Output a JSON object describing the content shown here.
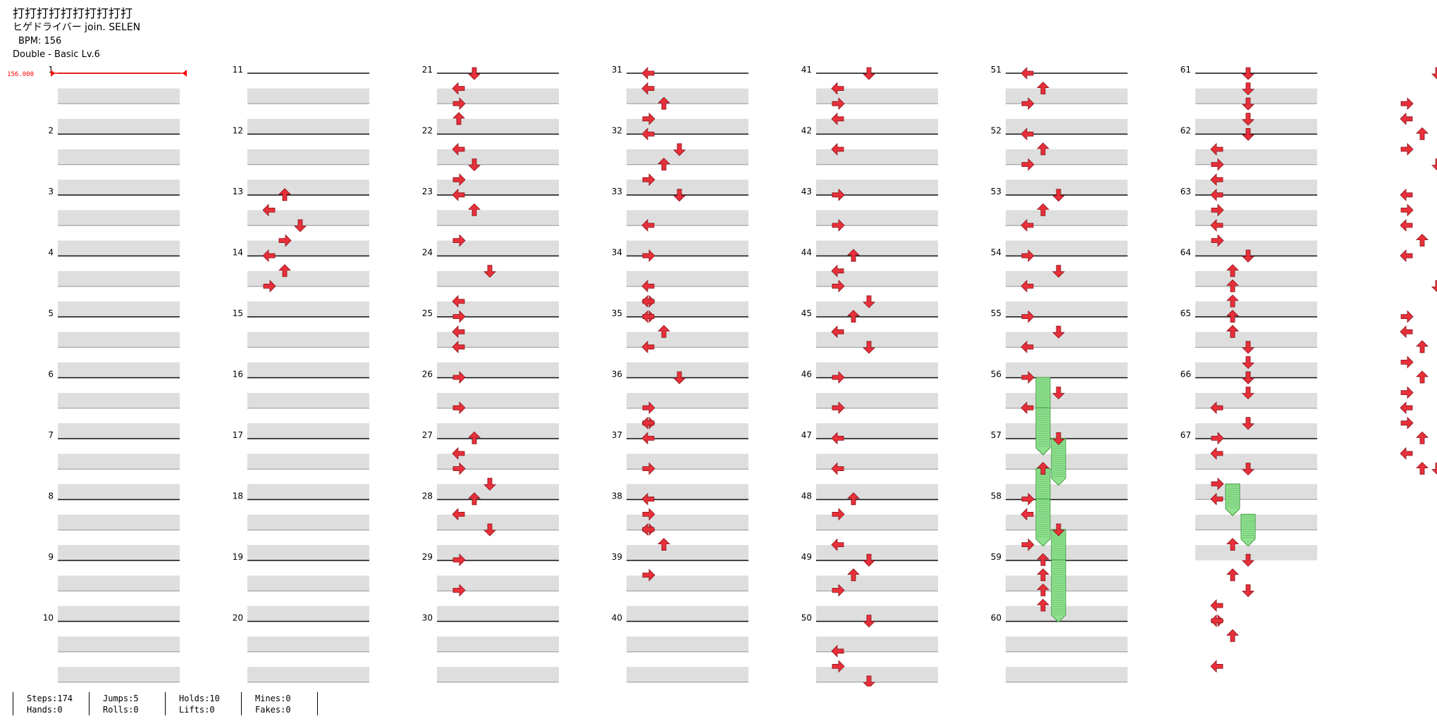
{
  "header": {
    "title": "打打打打打打打打打打",
    "artist": "ヒゲドライバー join. SELEN",
    "bpm": "BPM: 156",
    "difficulty": "Double - Basic Lv.6"
  },
  "bpm_marker": "156.000",
  "measure_numbers": [
    "1",
    "2",
    "3",
    "4",
    "5",
    "6",
    "7",
    "8",
    "9",
    "10",
    "11",
    "12",
    "13",
    "14",
    "15",
    "16",
    "17",
    "18",
    "19",
    "20",
    "21",
    "22",
    "23",
    "24",
    "25",
    "26",
    "27",
    "28",
    "29",
    "30",
    "31",
    "32",
    "33",
    "34",
    "35",
    "36",
    "37",
    "38",
    "39",
    "40",
    "41",
    "42",
    "43",
    "44",
    "45",
    "46",
    "47",
    "48",
    "49",
    "50",
    "51",
    "52",
    "53",
    "54",
    "55",
    "56",
    "57",
    "58",
    "59",
    "60",
    "61",
    "62",
    "63",
    "64",
    "65",
    "66",
    "67"
  ],
  "colors": {
    "arrow": "#e8303a",
    "hold": "#8fe08f",
    "hold_border": "#3c9a3c",
    "lane_bg": "#dedede",
    "bpm": "#ff0000"
  },
  "notes": [
    [
      1,
      8,
      0,
      "u"
    ],
    [
      1,
      9,
      -1,
      "l"
    ],
    [
      1,
      10,
      1,
      "d"
    ],
    [
      1,
      11,
      0,
      "r"
    ],
    [
      1,
      12,
      -1,
      "l"
    ],
    [
      1,
      13,
      0,
      "u"
    ],
    [
      1,
      14,
      -1,
      "r"
    ],
    [
      2,
      0,
      0,
      "d"
    ],
    [
      2,
      1,
      -1,
      "l"
    ],
    [
      2,
      2,
      -1,
      "r"
    ],
    [
      2,
      3,
      -1,
      "u"
    ],
    [
      2,
      5,
      -1,
      "l"
    ],
    [
      2,
      6,
      0,
      "d"
    ],
    [
      2,
      7,
      -1,
      "r"
    ],
    [
      2,
      8,
      -1,
      "l"
    ],
    [
      2,
      9,
      0,
      "u"
    ],
    [
      2,
      11,
      -1,
      "r"
    ],
    [
      2,
      13,
      1,
      "d"
    ],
    [
      2,
      15,
      -1,
      "l"
    ],
    [
      2,
      16,
      -1,
      "r"
    ],
    [
      2,
      17,
      -1,
      "l"
    ],
    [
      2,
      18,
      -1,
      "l"
    ],
    [
      2,
      20,
      -1,
      "r"
    ],
    [
      2,
      22,
      -1,
      "r"
    ],
    [
      2,
      24,
      0,
      "u"
    ],
    [
      2,
      25,
      -1,
      "l"
    ],
    [
      2,
      26,
      -1,
      "r"
    ],
    [
      2,
      27,
      1,
      "d"
    ],
    [
      2,
      28,
      0,
      "u"
    ],
    [
      2,
      29,
      -1,
      "l"
    ],
    [
      2,
      30,
      1,
      "d"
    ],
    [
      2,
      32,
      -1,
      "r"
    ],
    [
      2,
      34,
      -1,
      "r"
    ],
    [
      3,
      0,
      -1,
      "l"
    ],
    [
      3,
      1,
      -1,
      "l"
    ],
    [
      3,
      2,
      0,
      "u"
    ],
    [
      3,
      3,
      -1,
      "r"
    ],
    [
      3,
      4,
      -1,
      "l"
    ],
    [
      3,
      5,
      1,
      "d"
    ],
    [
      3,
      6,
      0,
      "u"
    ],
    [
      3,
      7,
      -1,
      "r"
    ],
    [
      3,
      8,
      1,
      "d"
    ],
    [
      3,
      10,
      -1,
      "l"
    ],
    [
      3,
      12,
      -1,
      "r"
    ],
    [
      3,
      14,
      -1,
      "l"
    ],
    [
      3,
      15,
      -1,
      "r"
    ],
    [
      3,
      15,
      -1,
      "l"
    ],
    [
      3,
      16,
      -1,
      "r"
    ],
    [
      3,
      16,
      -1,
      "l"
    ],
    [
      3,
      17,
      0,
      "u"
    ],
    [
      3,
      18,
      -1,
      "l"
    ],
    [
      3,
      20,
      1,
      "d"
    ],
    [
      3,
      22,
      -1,
      "r"
    ],
    [
      3,
      23,
      -1,
      "r"
    ],
    [
      3,
      23,
      -1,
      "l"
    ],
    [
      3,
      24,
      -1,
      "l"
    ],
    [
      3,
      26,
      -1,
      "r"
    ],
    [
      3,
      28,
      -1,
      "l"
    ],
    [
      3,
      29,
      -1,
      "r"
    ],
    [
      3,
      30,
      -1,
      "r"
    ],
    [
      3,
      30,
      -1,
      "l"
    ],
    [
      3,
      31,
      0,
      "u"
    ],
    [
      3,
      33,
      -1,
      "r"
    ],
    [
      4,
      0,
      1,
      "d"
    ],
    [
      4,
      1,
      -1,
      "l"
    ],
    [
      4,
      2,
      -1,
      "r"
    ],
    [
      4,
      3,
      -1,
      "l"
    ],
    [
      4,
      5,
      -1,
      "l"
    ],
    [
      4,
      8,
      -1,
      "r"
    ],
    [
      4,
      10,
      -1,
      "r"
    ],
    [
      4,
      12,
      0,
      "u"
    ],
    [
      4,
      13,
      -1,
      "l"
    ],
    [
      4,
      14,
      -1,
      "r"
    ],
    [
      4,
      15,
      1,
      "d"
    ],
    [
      4,
      16,
      0,
      "u"
    ],
    [
      4,
      17,
      -1,
      "l"
    ],
    [
      4,
      18,
      1,
      "d"
    ],
    [
      4,
      20,
      -1,
      "r"
    ],
    [
      4,
      22,
      -1,
      "r"
    ],
    [
      4,
      24,
      -1,
      "l"
    ],
    [
      4,
      26,
      -1,
      "l"
    ],
    [
      4,
      28,
      0,
      "u"
    ],
    [
      4,
      29,
      -1,
      "r"
    ],
    [
      4,
      31,
      -1,
      "l"
    ],
    [
      4,
      32,
      1,
      "d"
    ],
    [
      4,
      33,
      0,
      "u"
    ],
    [
      4,
      34,
      -1,
      "r"
    ],
    [
      4,
      36,
      1,
      "d"
    ],
    [
      4,
      38,
      -1,
      "l"
    ],
    [
      4,
      39,
      -1,
      "r"
    ],
    [
      4,
      40,
      1,
      "d"
    ],
    [
      5,
      0,
      -1,
      "l"
    ],
    [
      5,
      1,
      0,
      "u"
    ],
    [
      5,
      2,
      -1,
      "r"
    ],
    [
      5,
      4,
      -1,
      "l"
    ],
    [
      5,
      5,
      0,
      "u"
    ],
    [
      5,
      6,
      -1,
      "r"
    ],
    [
      5,
      8,
      1,
      "d"
    ],
    [
      5,
      9,
      0,
      "u"
    ],
    [
      5,
      10,
      -1,
      "l"
    ],
    [
      5,
      12,
      -1,
      "r"
    ],
    [
      5,
      13,
      1,
      "d"
    ],
    [
      5,
      14,
      -1,
      "l"
    ],
    [
      5,
      16,
      -1,
      "r"
    ],
    [
      5,
      17,
      1,
      "d"
    ],
    [
      5,
      18,
      -1,
      "l"
    ],
    [
      5,
      20,
      -1,
      "r"
    ],
    [
      5,
      21,
      1,
      "d"
    ],
    [
      5,
      22,
      -1,
      "l"
    ],
    [
      5,
      24,
      1,
      "d"
    ],
    [
      5,
      26,
      0,
      "u"
    ],
    [
      5,
      28,
      -1,
      "r"
    ],
    [
      5,
      29,
      -1,
      "l"
    ],
    [
      5,
      30,
      1,
      "d"
    ],
    [
      5,
      31,
      -1,
      "r"
    ],
    [
      5,
      32,
      0,
      "u"
    ],
    [
      5,
      33,
      0,
      "u"
    ],
    [
      5,
      34,
      0,
      "u"
    ],
    [
      5,
      35,
      0,
      "u"
    ],
    [
      6,
      0,
      1,
      "d"
    ],
    [
      6,
      1,
      1,
      "d"
    ],
    [
      6,
      2,
      1,
      "d"
    ],
    [
      6,
      3,
      1,
      "d"
    ],
    [
      6,
      4,
      1,
      "d"
    ],
    [
      6,
      5,
      -1,
      "l"
    ],
    [
      6,
      6,
      -1,
      "r"
    ],
    [
      6,
      7,
      -1,
      "l"
    ],
    [
      6,
      8,
      -1,
      "l"
    ],
    [
      6,
      9,
      -1,
      "r"
    ],
    [
      6,
      10,
      -1,
      "l"
    ],
    [
      6,
      11,
      -1,
      "r"
    ],
    [
      6,
      12,
      1,
      "d"
    ],
    [
      6,
      13,
      0,
      "u"
    ],
    [
      6,
      14,
      0,
      "u"
    ],
    [
      6,
      15,
      0,
      "u"
    ],
    [
      6,
      16,
      0,
      "u"
    ],
    [
      6,
      17,
      0,
      "u"
    ],
    [
      6,
      17,
      0,
      "u"
    ],
    [
      6,
      18,
      1,
      "d"
    ],
    [
      6,
      19,
      1,
      "d"
    ],
    [
      6,
      20,
      1,
      "d"
    ],
    [
      6,
      20,
      1,
      "d"
    ],
    [
      6,
      21,
      1,
      "d"
    ],
    [
      6,
      22,
      -1,
      "l"
    ],
    [
      6,
      23,
      1,
      "d"
    ],
    [
      6,
      24,
      -1,
      "r"
    ],
    [
      6,
      25,
      -1,
      "l"
    ],
    [
      6,
      26,
      1,
      "d"
    ],
    [
      6,
      27,
      -1,
      "r"
    ],
    [
      6,
      28,
      -1,
      "l"
    ],
    [
      6,
      31,
      0,
      "u"
    ],
    [
      6,
      32,
      1,
      "d"
    ],
    [
      6,
      33,
      0,
      "u"
    ],
    [
      6,
      34,
      1,
      "d"
    ],
    [
      6,
      35,
      -1,
      "l"
    ],
    [
      6,
      36,
      -1,
      "r"
    ],
    [
      6,
      36,
      -1,
      "l"
    ],
    [
      6,
      37,
      0,
      "u"
    ],
    [
      6,
      39,
      -1,
      "l"
    ],
    [
      7,
      0,
      1,
      "d"
    ],
    [
      7,
      2,
      -1,
      "r"
    ],
    [
      7,
      3,
      -1,
      "l"
    ],
    [
      7,
      4,
      0,
      "u"
    ],
    [
      7,
      5,
      -1,
      "r"
    ],
    [
      7,
      6,
      1,
      "d"
    ],
    [
      7,
      8,
      -1,
      "l"
    ],
    [
      7,
      9,
      -1,
      "r"
    ],
    [
      7,
      10,
      -1,
      "l"
    ],
    [
      7,
      11,
      0,
      "u"
    ],
    [
      7,
      12,
      -1,
      "l"
    ],
    [
      7,
      14,
      1,
      "d"
    ],
    [
      7,
      16,
      -1,
      "r"
    ],
    [
      7,
      17,
      -1,
      "l"
    ],
    [
      7,
      18,
      0,
      "u"
    ],
    [
      7,
      19,
      -1,
      "r"
    ],
    [
      7,
      20,
      0,
      "u"
    ],
    [
      7,
      21,
      -1,
      "r"
    ],
    [
      7,
      22,
      -1,
      "l"
    ],
    [
      7,
      23,
      -1,
      "r"
    ],
    [
      7,
      24,
      0,
      "u"
    ],
    [
      7,
      25,
      -1,
      "l"
    ],
    [
      7,
      26,
      1,
      "d"
    ],
    [
      7,
      26,
      0,
      "u"
    ]
  ],
  "holds": [
    [
      5,
      20,
      23,
      0
    ],
    [
      5,
      22,
      25,
      0
    ],
    [
      5,
      24,
      27,
      1
    ],
    [
      5,
      26,
      29,
      0
    ],
    [
      5,
      28,
      31,
      0
    ],
    [
      5,
      30,
      33,
      1
    ],
    [
      5,
      32,
      36,
      1
    ],
    [
      6,
      27,
      29,
      0
    ],
    [
      6,
      29,
      31,
      1
    ]
  ],
  "stats": [
    [
      "Steps:174",
      "Hands:0"
    ],
    [
      "Jumps:5",
      "Rolls:0"
    ],
    [
      "Holds:10",
      "Lifts:0"
    ],
    [
      "Mines:0",
      "Fakes:0"
    ]
  ]
}
